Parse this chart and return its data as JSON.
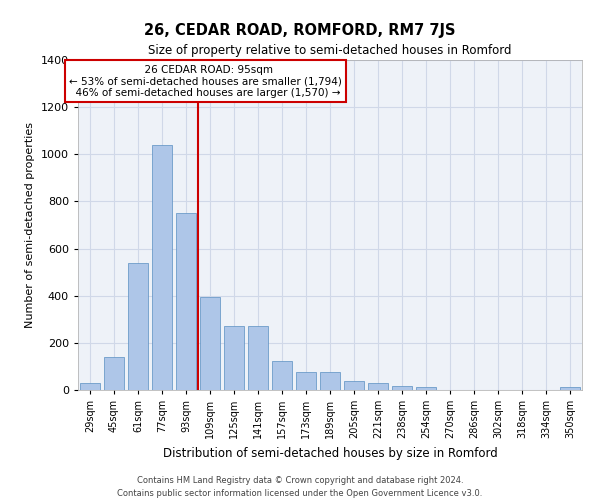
{
  "title": "26, CEDAR ROAD, ROMFORD, RM7 7JS",
  "subtitle": "Size of property relative to semi-detached houses in Romford",
  "xlabel": "Distribution of semi-detached houses by size in Romford",
  "ylabel": "Number of semi-detached properties",
  "categories": [
    "29sqm",
    "45sqm",
    "61sqm",
    "77sqm",
    "93sqm",
    "109sqm",
    "125sqm",
    "141sqm",
    "157sqm",
    "173sqm",
    "189sqm",
    "205sqm",
    "221sqm",
    "238sqm",
    "254sqm",
    "270sqm",
    "286sqm",
    "302sqm",
    "318sqm",
    "334sqm",
    "350sqm"
  ],
  "values": [
    28,
    140,
    540,
    1040,
    750,
    395,
    270,
    270,
    125,
    78,
    78,
    40,
    30,
    15,
    12,
    0,
    0,
    0,
    0,
    0,
    12
  ],
  "bar_color": "#aec6e8",
  "bar_edge_color": "#5a8fc2",
  "property_label": "26 CEDAR ROAD: 95sqm",
  "pct_smaller": 53,
  "pct_larger": 46,
  "count_smaller": 1794,
  "count_larger": 1570,
  "annotation_box_color": "#ffffff",
  "annotation_box_edge": "#cc0000",
  "vline_color": "#cc0000",
  "grid_color": "#d0d8e8",
  "bg_color": "#eef2f8",
  "footer1": "Contains HM Land Registry data © Crown copyright and database right 2024.",
  "footer2": "Contains public sector information licensed under the Open Government Licence v3.0.",
  "ylim": [
    0,
    1400
  ],
  "yticks": [
    0,
    200,
    400,
    600,
    800,
    1000,
    1200,
    1400
  ],
  "vline_x": 4.5
}
